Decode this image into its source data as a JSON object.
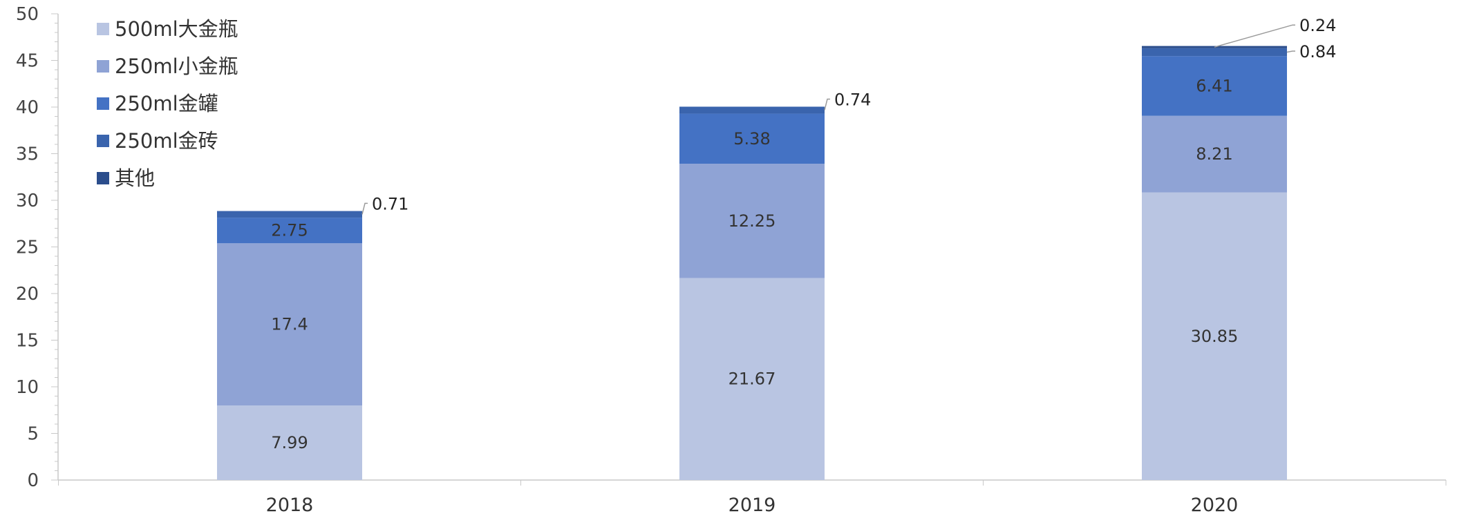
{
  "chart_data": {
    "type": "bar",
    "stacked": true,
    "title": "",
    "xlabel": "",
    "ylabel": "",
    "categories": [
      "2018",
      "2019",
      "2020"
    ],
    "ylim": [
      0,
      50
    ],
    "yticks": [
      0,
      5,
      10,
      15,
      20,
      25,
      30,
      35,
      40,
      45,
      50
    ],
    "grid": false,
    "legend_position": "top-left",
    "series": [
      {
        "name": "500ml大金瓶",
        "color": "#b9c5e2",
        "values": [
          7.99,
          21.67,
          30.85
        ],
        "labels": [
          "7.99",
          "21.67",
          "30.85"
        ]
      },
      {
        "name": "250ml小金瓶",
        "color": "#8fa3d5",
        "values": [
          17.4,
          12.25,
          8.21
        ],
        "labels": [
          "17.4",
          "12.25",
          "8.21"
        ]
      },
      {
        "name": "250ml金罐",
        "color": "#4472c4",
        "values": [
          2.75,
          5.38,
          6.41
        ],
        "labels": [
          "2.75",
          "5.38",
          "6.41"
        ]
      },
      {
        "name": "250ml金砖",
        "color": "#3a64ad",
        "values": [
          0.71,
          0.74,
          0.84
        ],
        "labels": [
          "0.71",
          "0.74",
          "0.84"
        ]
      },
      {
        "name": "其他",
        "color": "#2b4d8c",
        "values": [
          0,
          0,
          0.24
        ],
        "labels": [
          "",
          "",
          "0.24"
        ]
      }
    ]
  }
}
